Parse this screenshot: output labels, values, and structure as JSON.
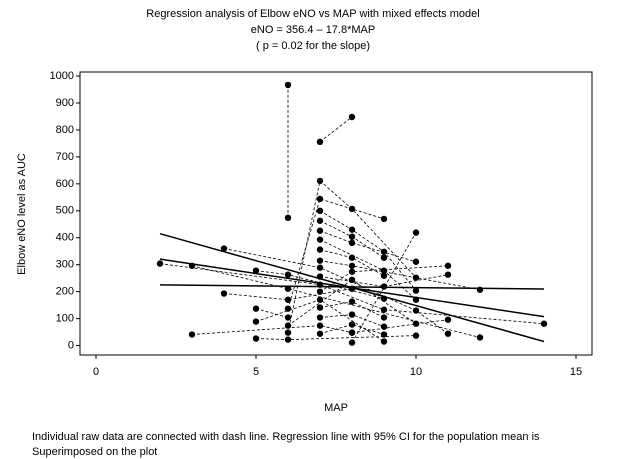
{
  "chart_data": {
    "type": "scatter",
    "title": [
      "Regression analysis of Elbow eNO vs MAP with mixed effects model",
      "eNO = 356.4 – 17.8*MAP",
      "( p = 0.02 for the slope)"
    ],
    "x_label": "MAP",
    "y_label": "Elbow eNO level as AUC",
    "caption": [
      "Individual raw data are connected with dash line.  Regression line with 95% CI for the population mean is",
      "Superimposed on the plot"
    ],
    "xlim": [
      -0.5,
      15.5
    ],
    "ylim": [
      -35,
      1015
    ],
    "xticks": [
      0,
      5,
      10,
      15
    ],
    "yticks": [
      0,
      100,
      200,
      300,
      400,
      500,
      600,
      700,
      800,
      900,
      1000
    ],
    "color": "#000000",
    "subjects": [
      {
        "x": [
          6,
          6
        ],
        "values": [
          967,
          474
        ]
      },
      {
        "x": [
          7,
          8
        ],
        "values": [
          756,
          848
        ]
      },
      {
        "x": [
          2,
          7,
          9,
          14
        ],
        "values": [
          304,
          226,
          133,
          81
        ]
      },
      {
        "x": [
          3,
          6,
          12
        ],
        "values": [
          296,
          211,
          30
        ]
      },
      {
        "x": [
          3,
          7,
          8
        ],
        "values": [
          41,
          74,
          48
        ]
      },
      {
        "x": [
          4,
          7,
          10,
          11
        ],
        "values": [
          360,
          289,
          130,
          44
        ]
      },
      {
        "x": [
          4,
          6,
          8
        ],
        "values": [
          193,
          170,
          211
        ]
      },
      {
        "x": [
          5,
          6,
          9
        ],
        "values": [
          278,
          263,
          174
        ]
      },
      {
        "x": [
          5,
          6
        ],
        "values": [
          137,
          104
        ]
      },
      {
        "x": [
          5,
          7,
          9
        ],
        "values": [
          89,
          170,
          15
        ]
      },
      {
        "x": [
          5,
          6,
          10
        ],
        "values": [
          26,
          22,
          37
        ]
      },
      {
        "x": [
          6,
          7,
          8,
          10
        ],
        "values": [
          48,
          611,
          507,
          252
        ]
      },
      {
        "x": [
          6,
          7,
          9
        ],
        "values": [
          137,
          544,
          470
        ]
      },
      {
        "x": [
          7,
          8,
          9,
          10
        ],
        "values": [
          500,
          430,
          348,
          204
        ]
      },
      {
        "x": [
          7,
          8,
          9
        ],
        "values": [
          463,
          404,
          326
        ]
      },
      {
        "x": [
          7,
          8,
          10
        ],
        "values": [
          426,
          381,
          311
        ]
      },
      {
        "x": [
          7,
          9,
          10
        ],
        "values": [
          393,
          278,
          170
        ]
      },
      {
        "x": [
          7,
          8,
          9
        ],
        "values": [
          356,
          326,
          259
        ]
      },
      {
        "x": [
          7,
          8,
          12
        ],
        "values": [
          315,
          296,
          207
        ]
      },
      {
        "x": [
          7,
          9,
          11
        ],
        "values": [
          256,
          219,
          263
        ]
      },
      {
        "x": [
          7,
          8,
          11
        ],
        "values": [
          200,
          274,
          296
        ]
      },
      {
        "x": [
          6,
          8,
          10
        ],
        "values": [
          74,
          244,
          81
        ]
      },
      {
        "x": [
          7,
          8,
          9
        ],
        "values": [
          141,
          163,
          104
        ]
      },
      {
        "x": [
          7,
          8,
          9
        ],
        "values": [
          104,
          115,
          70
        ]
      },
      {
        "x": [
          7,
          8,
          9
        ],
        "values": [
          44,
          78,
          41
        ]
      },
      {
        "x": [
          8,
          10
        ],
        "values": [
          11,
          419
        ]
      },
      {
        "x": [
          8,
          11
        ],
        "values": [
          48,
          96
        ]
      }
    ],
    "lines": [
      {
        "x": [
          2,
          14
        ],
        "values": [
          320.8,
          107.2
        ]
      },
      {
        "x": [
          2,
          14
        ],
        "values": [
          415,
          15
        ]
      },
      {
        "x": [
          2,
          14
        ],
        "values": [
          225,
          210
        ]
      }
    ]
  }
}
